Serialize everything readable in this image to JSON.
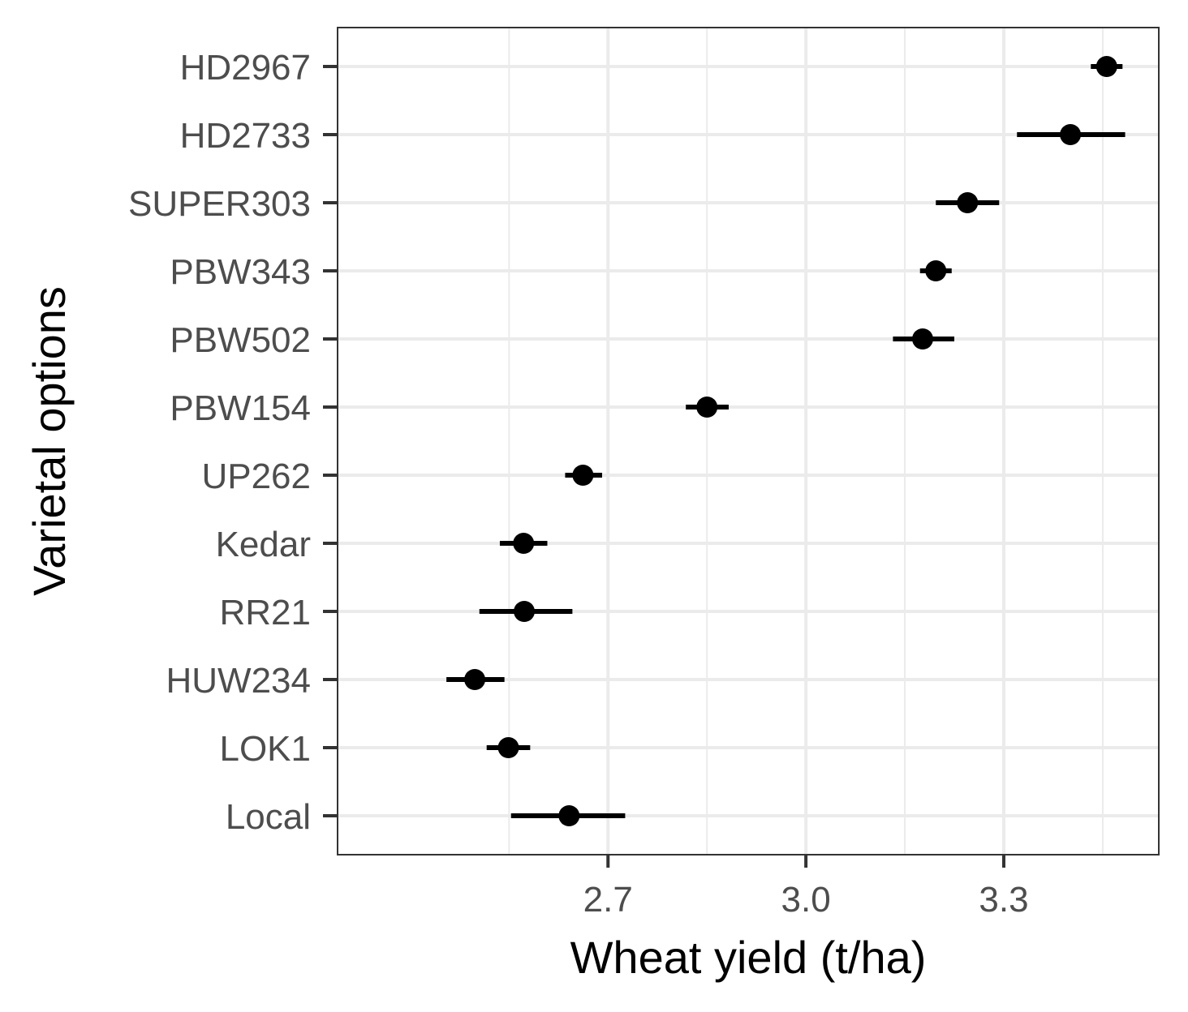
{
  "chart_data": {
    "type": "scatter",
    "orientation": "horizontal",
    "xlabel": "Wheat yield (t/ha)",
    "ylabel": "Varietal options",
    "xlim": [
      2.29,
      3.535
    ],
    "xticks": [
      2.7,
      3.0,
      3.3
    ],
    "xtick_labels": [
      "2.7",
      "3.0",
      "3.3"
    ],
    "grid": true,
    "categories": [
      "HD2967",
      "HD2733",
      "SUPER303",
      "PBW343",
      "PBW502",
      "PBW154",
      "UP262",
      "Kedar",
      "RR21",
      "HUW234",
      "LOK1",
      "Local"
    ],
    "points": [
      {
        "label": "HD2967",
        "mean": 3.456,
        "low": 3.432,
        "high": 3.48
      },
      {
        "label": "HD2733",
        "mean": 3.401,
        "low": 3.32,
        "high": 3.484
      },
      {
        "label": "SUPER303",
        "mean": 3.245,
        "low": 3.197,
        "high": 3.293
      },
      {
        "label": "PBW343",
        "mean": 3.197,
        "low": 3.173,
        "high": 3.221
      },
      {
        "label": "PBW502",
        "mean": 3.177,
        "low": 3.132,
        "high": 3.225
      },
      {
        "label": "PBW154",
        "mean": 2.85,
        "low": 2.818,
        "high": 2.883
      },
      {
        "label": "UP262",
        "mean": 2.662,
        "low": 2.635,
        "high": 2.691
      },
      {
        "label": "Kedar",
        "mean": 2.572,
        "low": 2.536,
        "high": 2.608
      },
      {
        "label": "RR21",
        "mean": 2.573,
        "low": 2.505,
        "high": 2.646
      },
      {
        "label": "HUW234",
        "mean": 2.498,
        "low": 2.455,
        "high": 2.543
      },
      {
        "label": "LOK1",
        "mean": 2.549,
        "low": 2.516,
        "high": 2.582
      },
      {
        "label": "Local",
        "mean": 2.641,
        "low": 2.553,
        "high": 2.726
      }
    ],
    "colors": {
      "point": "#000000",
      "errorbar": "#000000",
      "grid": "#ebebeb",
      "panel_border": "#333333",
      "tick_text": "#4d4d4d",
      "title_text": "#000000"
    }
  }
}
